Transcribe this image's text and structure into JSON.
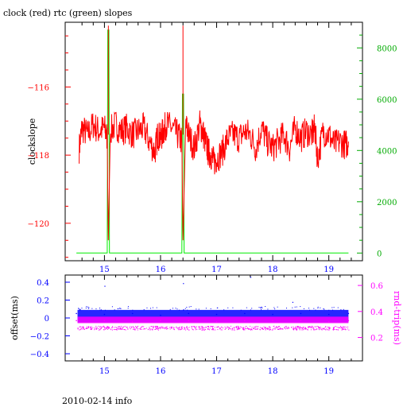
{
  "title": "clock (red) rtc (green) slopes",
  "footer": "2010-02-14 info",
  "colors": {
    "red": "#ff0000",
    "green": "#00ee00",
    "blue": "#0000ff",
    "magenta": "#ff00ff",
    "frame": "#000000"
  },
  "chart_data": [
    {
      "type": "line",
      "title": "clock (red) rtc (green) slopes",
      "ylabel": "clockslope",
      "xlim": [
        14.3,
        19.6
      ],
      "ylim": [
        -121.1,
        -114.1
      ],
      "y2lim": [
        -300,
        9000
      ],
      "x_ticks": [
        15,
        16,
        17,
        18,
        19
      ],
      "y_ticks": [
        -116,
        -118,
        -120
      ],
      "y2_ticks": [
        0,
        2000,
        4000,
        6000,
        8000
      ],
      "series": [
        {
          "name": "clock",
          "color": "#ff0000",
          "axis": "left",
          "x": [
            14.55,
            14.6,
            14.7,
            14.8,
            14.9,
            15.0,
            15.05,
            15.07,
            15.1,
            15.2,
            15.3,
            15.4,
            15.5,
            15.6,
            15.7,
            15.8,
            15.9,
            15.95,
            16.0,
            16.05,
            16.1,
            16.2,
            16.3,
            16.38,
            16.4,
            16.45,
            16.5,
            16.6,
            16.7,
            16.75,
            16.8,
            16.85,
            16.9,
            16.95,
            17.0,
            17.1,
            17.2,
            17.3,
            17.4,
            17.5,
            17.6,
            17.7,
            17.8,
            17.9,
            18.0,
            18.1,
            18.2,
            18.3,
            18.4,
            18.5,
            18.6,
            18.7,
            18.75,
            18.8,
            18.9,
            19.0,
            19.1,
            19.2,
            19.3,
            19.35
          ],
          "values": [
            -117.8,
            -117.2,
            -117.4,
            -117.1,
            -117.3,
            -117.2,
            -117.5,
            -120.5,
            -117.3,
            -117.1,
            -117.3,
            -117.2,
            -117.4,
            -117.3,
            -117.2,
            -117.6,
            -117.9,
            -117.4,
            -117.5,
            -117.3,
            -117.1,
            -117.2,
            -117.4,
            -117.6,
            -120.5,
            -117.1,
            -117.4,
            -117.8,
            -117.1,
            -117.3,
            -117.6,
            -117.9,
            -118.0,
            -118.2,
            -118.1,
            -117.9,
            -117.5,
            -117.4,
            -117.5,
            -117.3,
            -117.4,
            -117.8,
            -117.2,
            -117.6,
            -117.8,
            -117.6,
            -117.4,
            -117.8,
            -117.2,
            -117.5,
            -117.3,
            -117.4,
            -117.2,
            -118.1,
            -117.3,
            -117.4,
            -117.7,
            -117.6,
            -117.7,
            -117.6
          ]
        },
        {
          "name": "rtc",
          "color": "#00ee00",
          "axis": "right",
          "x": [
            14.5,
            15.05,
            15.06,
            15.08,
            15.09,
            16.38,
            16.39,
            16.41,
            16.42,
            19.35
          ],
          "values": [
            0,
            0,
            8700,
            8700,
            0,
            0,
            6200,
            6200,
            0,
            0
          ]
        }
      ]
    },
    {
      "type": "scatter",
      "ylabel": "offset(ms)",
      "y2label": "rnd-trip(ms)",
      "xlim": [
        14.3,
        19.6
      ],
      "ylim": [
        -0.48,
        0.48
      ],
      "y2lim": [
        0.25,
        0.68
      ],
      "x_ticks": [
        15,
        16,
        17,
        18,
        19
      ],
      "y_ticks": [
        0.4,
        0.2,
        0,
        -0.2,
        -0.4
      ],
      "y2_ticks": [
        0.2,
        0.4,
        0.6
      ],
      "series": [
        {
          "name": "offset",
          "color": "#0000ff",
          "axis": "left",
          "x": [
            14.5,
            15.0,
            15.5,
            16.0,
            16.5,
            17.0,
            17.5,
            18.0,
            18.5,
            19.0,
            19.35
          ],
          "values": [
            0.05,
            0.04,
            0.05,
            0.03,
            0.05,
            0.04,
            0.05,
            0.04,
            0.05,
            0.04,
            0.05
          ],
          "band": [
            -0.05,
            0.09
          ]
        },
        {
          "name": "rnd-trip",
          "color": "#ff00ff",
          "axis": "right",
          "x": [
            14.5,
            15.0,
            15.5,
            16.0,
            16.5,
            17.0,
            17.5,
            18.0,
            18.5,
            19.0,
            19.35
          ],
          "values": [
            0.33,
            0.33,
            0.32,
            0.33,
            0.33,
            0.32,
            0.33,
            0.33,
            0.33,
            0.32,
            0.33
          ],
          "band": [
            0.31,
            0.36
          ],
          "low_band": [
            0.26,
            0.29
          ]
        }
      ]
    }
  ]
}
